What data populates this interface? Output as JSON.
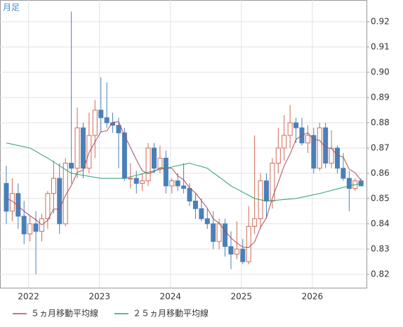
{
  "chart_data": {
    "type": "candlestick",
    "period_label": "月足",
    "categories": [
      null,
      null,
      null,
      null,
      "2022",
      null,
      null,
      null,
      null,
      null,
      null,
      null,
      null,
      null,
      null,
      null,
      "2023",
      null,
      null,
      null,
      null,
      null,
      null,
      null,
      null,
      null,
      null,
      null,
      "2024",
      null,
      null,
      null,
      null,
      null,
      null,
      null,
      null,
      null,
      null,
      null,
      "2025",
      null,
      null,
      null,
      null,
      null,
      null,
      null,
      null,
      null,
      null,
      null,
      "2026",
      null,
      null,
      null,
      null,
      null,
      null,
      null,
      null
    ],
    "open": [
      0.856,
      0.845,
      0.852,
      0.843,
      0.836,
      0.84,
      0.837,
      0.842,
      0.852,
      0.858,
      0.84,
      0.864,
      0.862,
      0.878,
      0.862,
      0.875,
      0.885,
      0.882,
      0.88,
      0.879,
      0.876,
      0.858,
      0.858,
      0.856,
      0.857,
      0.87,
      0.862,
      0.866,
      0.855,
      0.857,
      0.855,
      0.854,
      0.849,
      0.846,
      0.842,
      0.84,
      0.833,
      0.84,
      0.831,
      0.828,
      0.83,
      0.825,
      0.839,
      0.842,
      0.857,
      0.849,
      0.864,
      0.87,
      0.875,
      0.88,
      0.878,
      0.872,
      0.875,
      0.862,
      0.878,
      0.864,
      0.87,
      0.862,
      0.858,
      0.854,
      0.857
    ],
    "high": [
      0.863,
      0.858,
      0.856,
      0.849,
      0.843,
      0.845,
      0.844,
      0.853,
      0.865,
      0.864,
      0.866,
      0.924,
      0.886,
      0.88,
      0.884,
      0.889,
      0.898,
      0.896,
      0.884,
      0.882,
      0.878,
      0.864,
      0.861,
      0.86,
      0.872,
      0.872,
      0.871,
      0.869,
      0.858,
      0.86,
      0.864,
      0.856,
      0.852,
      0.85,
      0.846,
      0.845,
      0.842,
      0.842,
      0.837,
      0.841,
      0.834,
      0.847,
      0.875,
      0.86,
      0.86,
      0.866,
      0.878,
      0.883,
      0.887,
      0.882,
      0.882,
      0.879,
      0.878,
      0.88,
      0.88,
      0.877,
      0.871,
      0.868,
      0.861,
      0.858,
      0.858
    ],
    "low": [
      0.84,
      0.841,
      0.838,
      0.832,
      0.833,
      0.82,
      0.833,
      0.838,
      0.844,
      0.836,
      0.839,
      0.856,
      0.858,
      0.858,
      0.86,
      0.866,
      0.876,
      0.878,
      0.876,
      0.862,
      0.857,
      0.854,
      0.852,
      0.853,
      0.855,
      0.86,
      0.86,
      0.852,
      0.852,
      0.853,
      0.852,
      0.847,
      0.842,
      0.841,
      0.838,
      0.83,
      0.83,
      0.827,
      0.822,
      0.826,
      0.824,
      0.824,
      0.836,
      0.838,
      0.842,
      0.846,
      0.86,
      0.865,
      0.87,
      0.872,
      0.871,
      0.868,
      0.86,
      0.861,
      0.862,
      0.862,
      0.86,
      0.857,
      0.845,
      0.853,
      0.855
    ],
    "close": [
      0.845,
      0.852,
      0.843,
      0.836,
      0.84,
      0.837,
      0.842,
      0.852,
      0.858,
      0.84,
      0.864,
      0.862,
      0.878,
      0.862,
      0.875,
      0.885,
      0.882,
      0.88,
      0.879,
      0.876,
      0.858,
      0.858,
      0.856,
      0.857,
      0.87,
      0.862,
      0.866,
      0.855,
      0.857,
      0.855,
      0.854,
      0.849,
      0.846,
      0.842,
      0.84,
      0.833,
      0.84,
      0.831,
      0.828,
      0.83,
      0.825,
      0.839,
      0.842,
      0.857,
      0.849,
      0.864,
      0.87,
      0.875,
      0.88,
      0.878,
      0.872,
      0.875,
      0.862,
      0.878,
      0.864,
      0.87,
      0.862,
      0.858,
      0.854,
      0.857,
      0.855
    ],
    "up_color": "#d06a55",
    "down_color": "#4a80b8",
    "series": [
      {
        "name": "５ヵ月移動平均線",
        "color": "#b04a5a",
        "values": [
          0.85,
          0.849,
          0.847,
          0.845,
          0.8432,
          0.8416,
          0.8396,
          0.8414,
          0.8458,
          0.8458,
          0.8512,
          0.8552,
          0.8604,
          0.8612,
          0.8682,
          0.8724,
          0.8764,
          0.8768,
          0.8802,
          0.8804,
          0.875,
          0.8702,
          0.8654,
          0.861,
          0.8598,
          0.8606,
          0.8622,
          0.862,
          0.862,
          0.859,
          0.8574,
          0.8542,
          0.8522,
          0.8492,
          0.8462,
          0.842,
          0.8402,
          0.8372,
          0.8344,
          0.8324,
          0.8308,
          0.8306,
          0.8328,
          0.8386,
          0.8424,
          0.8502,
          0.8564,
          0.863,
          0.8676,
          0.8734,
          0.875,
          0.876,
          0.8734,
          0.873,
          0.8702,
          0.8698,
          0.8672,
          0.8664,
          0.8616,
          0.8602,
          0.8572
        ]
      },
      {
        "name": "２５ヵ月移動平均線",
        "color": "#2aa070",
        "values": [
          0.872,
          0.8715,
          0.871,
          0.8705,
          0.87,
          0.8687,
          0.8673,
          0.866,
          0.8645,
          0.863,
          0.8615,
          0.86,
          0.8596,
          0.8592,
          0.8588,
          0.8584,
          0.858,
          0.858,
          0.858,
          0.858,
          0.858,
          0.8586,
          0.8592,
          0.8598,
          0.8604,
          0.861,
          0.8615,
          0.862,
          0.8625,
          0.863,
          0.8635,
          0.864,
          0.8633,
          0.8627,
          0.862,
          0.8602,
          0.8585,
          0.8568,
          0.855,
          0.8538,
          0.8525,
          0.8513,
          0.85,
          0.8495,
          0.849,
          0.8492,
          0.8494,
          0.8496,
          0.8498,
          0.85,
          0.8505,
          0.851,
          0.8515,
          0.852,
          0.8526,
          0.8532,
          0.8538,
          0.8544,
          0.855,
          0.8555,
          0.856
        ]
      }
    ],
    "ylim": [
      0.8147,
      0.9286
    ],
    "yticks": [
      0.82,
      0.83,
      0.84,
      0.85,
      0.86,
      0.87,
      0.88,
      0.89,
      {
        "value": 0.9,
        "label": "0.90"
      },
      0.91,
      0.92
    ],
    "grid": true
  }
}
